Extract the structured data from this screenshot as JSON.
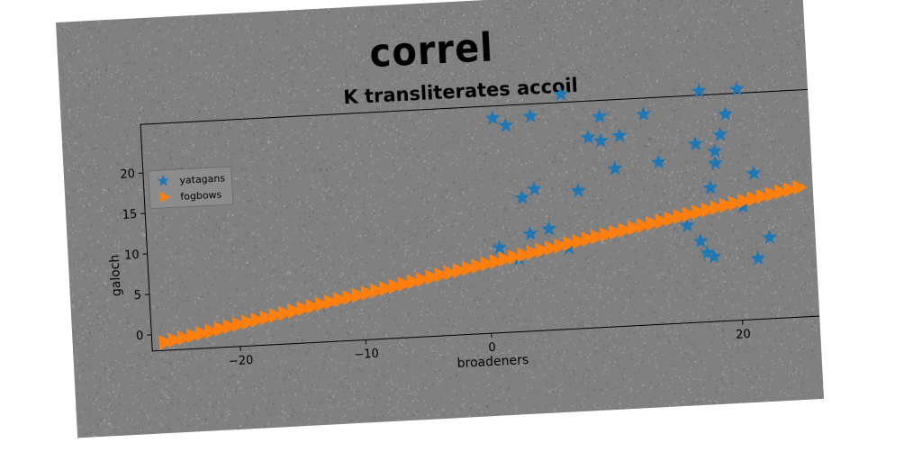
{
  "figure": {
    "suptitle": "correl",
    "background": "#808080"
  },
  "chart_data": {
    "type": "scatter",
    "title": "K transliterates accoil",
    "xlabel": "broadeners",
    "ylabel": "galoch",
    "xlim": [
      -27,
      27
    ],
    "ylim": [
      -2,
      26
    ],
    "xticks": [
      -20,
      -10,
      0,
      20
    ],
    "yticks": [
      0,
      5,
      10,
      15,
      20
    ],
    "grid": false,
    "legend_position": "top-left",
    "series": [
      {
        "name": "yatagans",
        "marker": "star",
        "color": "#1f77b4",
        "points": [
          [
            1.0,
            24.5
          ],
          [
            2.0,
            23.5
          ],
          [
            4.0,
            24.5
          ],
          [
            6.5,
            27.0
          ],
          [
            9.5,
            24.0
          ],
          [
            13.0,
            24.0
          ],
          [
            17.5,
            26.5
          ],
          [
            20.5,
            26.5
          ],
          [
            19.5,
            23.5
          ],
          [
            8.5,
            21.5
          ],
          [
            9.5,
            21.0
          ],
          [
            11.0,
            21.5
          ],
          [
            10.5,
            17.5
          ],
          [
            14.0,
            18.0
          ],
          [
            17.0,
            20.0
          ],
          [
            19.0,
            21.0
          ],
          [
            18.5,
            19.0
          ],
          [
            18.5,
            17.5
          ],
          [
            3.0,
            14.5
          ],
          [
            4.0,
            15.5
          ],
          [
            7.5,
            15.0
          ],
          [
            18.0,
            14.5
          ],
          [
            21.5,
            16.0
          ],
          [
            3.5,
            10.0
          ],
          [
            5.0,
            10.5
          ],
          [
            1.0,
            8.5
          ],
          [
            2.5,
            7.0
          ],
          [
            6.5,
            8.0
          ],
          [
            16.0,
            10.0
          ],
          [
            17.0,
            8.0
          ],
          [
            18.0,
            6.0
          ],
          [
            17.5,
            6.5
          ],
          [
            20.5,
            12.0
          ],
          [
            22.5,
            8.0
          ],
          [
            21.5,
            5.5
          ]
        ]
      },
      {
        "name": "fogbows",
        "marker": "triangle-right",
        "color": "#ff7f0e",
        "line": {
          "x_start": -26,
          "x_end": 25,
          "y_start": -1,
          "y_end": 14,
          "count": 70
        }
      }
    ]
  }
}
